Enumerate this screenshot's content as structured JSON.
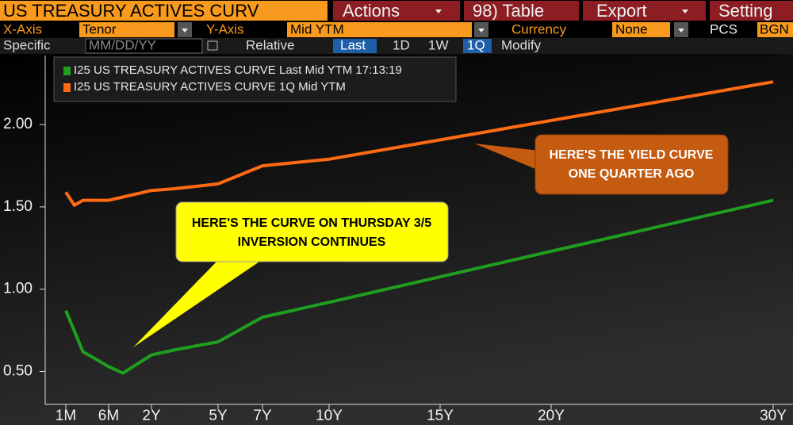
{
  "toolbar": {
    "title": "US TREASURY ACTIVES CURV",
    "actions": "Actions",
    "table": "98) Table",
    "export": "Export",
    "settings": "Setting",
    "x_axis_label": "X-Axis",
    "x_axis_value": "Tenor",
    "y_axis_label": "Y-Axis",
    "y_axis_value": "Mid YTM",
    "currency_label": "Currency",
    "currency_value": "None",
    "pcs_label": "PCS",
    "pcs_value": "BGN",
    "specific_label": "Specific",
    "date_placeholder": "MM/DD/YY",
    "relative_label": "Relative",
    "buttons": [
      "Last",
      "1D",
      "1W",
      "1Q"
    ],
    "modify": "Modify"
  },
  "chart_data": {
    "type": "line",
    "series": [
      {
        "name": "I25 US TREASURY ACTIVES CURVE Last Mid YTM 17:13:19",
        "color": "#1f9e1f",
        "x": [
          0.0833,
          0.25,
          0.5,
          1,
          2,
          3,
          5,
          7,
          10,
          30
        ],
        "values": [
          0.87,
          0.62,
          0.53,
          0.49,
          0.6,
          0.63,
          0.68,
          0.83,
          0.92,
          1.54
        ]
      },
      {
        "name": "I25 US TREASURY ACTIVES CURVE 1Q Mid YTM",
        "color": "#ff6a13",
        "x": [
          0.0833,
          0.1667,
          0.25,
          0.5,
          1,
          2,
          3,
          5,
          7,
          10,
          30
        ],
        "values": [
          1.59,
          1.51,
          1.54,
          1.54,
          1.56,
          1.6,
          1.61,
          1.64,
          1.75,
          1.79,
          2.26
        ]
      }
    ],
    "xticks": [
      {
        "value": 0.0833,
        "label": "1M"
      },
      {
        "value": 0.5,
        "label": "6M"
      },
      {
        "value": 2,
        "label": "2Y"
      },
      {
        "value": 5,
        "label": "5Y"
      },
      {
        "value": 7,
        "label": "7Y"
      },
      {
        "value": 10,
        "label": "10Y"
      },
      {
        "value": 15,
        "label": "15Y"
      },
      {
        "value": 20,
        "label": "20Y"
      },
      {
        "value": 30,
        "label": "30Y"
      }
    ],
    "ylim": [
      0.3,
      2.42
    ],
    "yticks": [
      {
        "value": 0.5,
        "label": "0.50"
      },
      {
        "value": 1,
        "label": "1.00"
      },
      {
        "value": 1.5,
        "label": "1.50"
      },
      {
        "value": 2,
        "label": "2.00"
      }
    ],
    "grid": false,
    "annotations": [
      {
        "lines": [
          "HERE'S THE YIELD CURVE",
          "ONE QUARTER AGO"
        ]
      },
      {
        "lines": [
          "HERE'S THE CURVE ON THURSDAY 3/5",
          "INVERSION CONTINUES"
        ]
      }
    ]
  }
}
